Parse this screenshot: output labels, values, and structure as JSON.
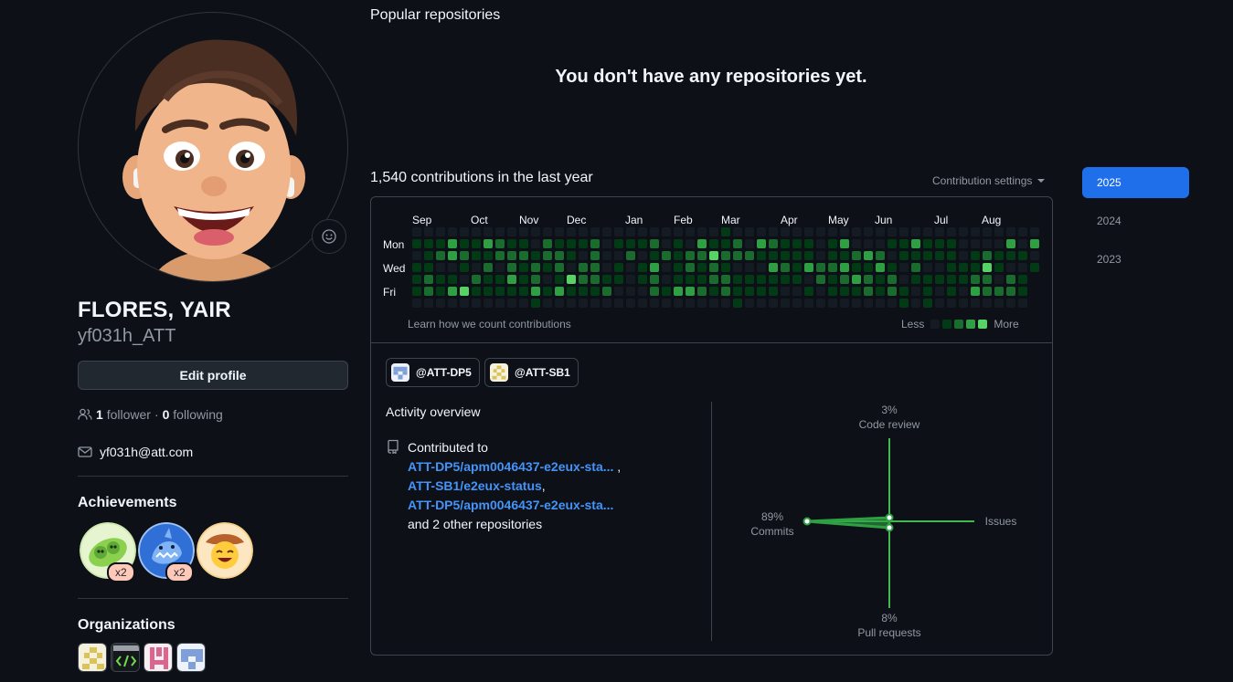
{
  "profile": {
    "full_name": "FLORES, YAIR",
    "login": "yf031h_ATT",
    "edit_label": "Edit profile",
    "followers_count": "1",
    "followers_label": "follower",
    "sep": "·",
    "following_count": "0",
    "following_label": "following",
    "email": "yf031h@att.com"
  },
  "achievements": {
    "title": "Achievements",
    "items": [
      {
        "name": "pair-extraordinaire",
        "count": "x2"
      },
      {
        "name": "pull-shark",
        "count": "x2"
      },
      {
        "name": "yolo",
        "count": ""
      }
    ]
  },
  "organizations": {
    "title": "Organizations"
  },
  "main": {
    "popular_title": "Popular repositories",
    "no_repos": "You don't have any repositories yet.",
    "contributions_title": "1,540 contributions in the last year",
    "contribution_settings": "Contribution settings",
    "months": [
      "Sep",
      "Oct",
      "Nov",
      "Dec",
      "Jan",
      "Feb",
      "Mar",
      "Apr",
      "May",
      "Jun",
      "Jul",
      "Aug"
    ],
    "days": [
      "Mon",
      "Wed",
      "Fri"
    ],
    "learn_link": "Learn how we count contributions",
    "less": "Less",
    "more": "More"
  },
  "org_chips": [
    {
      "label": "@ATT-DP5"
    },
    {
      "label": "@ATT-SB1"
    }
  ],
  "activity": {
    "title": "Activity overview",
    "contributed_to": "Contributed to",
    "repos": [
      "ATT-DP5/apm0046437-e2eux-sta...",
      "ATT-SB1/e2eux-status",
      "ATT-DP5/apm0046437-e2eux-sta..."
    ],
    "others": "and 2 other repositories",
    "radar": {
      "code_review_pct": "3%",
      "code_review": "Code review",
      "commits_pct": "89%",
      "commits": "Commits",
      "issues": "Issues",
      "pull_requests_pct": "8%",
      "pull_requests": "Pull requests"
    }
  },
  "years": [
    "2025",
    "2024",
    "2023"
  ],
  "colors": {
    "accent": "#1f6feb",
    "link": "#4493f8",
    "level0": "#151b23",
    "level1": "#033a16",
    "level2": "#196c2e",
    "level3": "#2ea043",
    "level4": "#56d364"
  }
}
